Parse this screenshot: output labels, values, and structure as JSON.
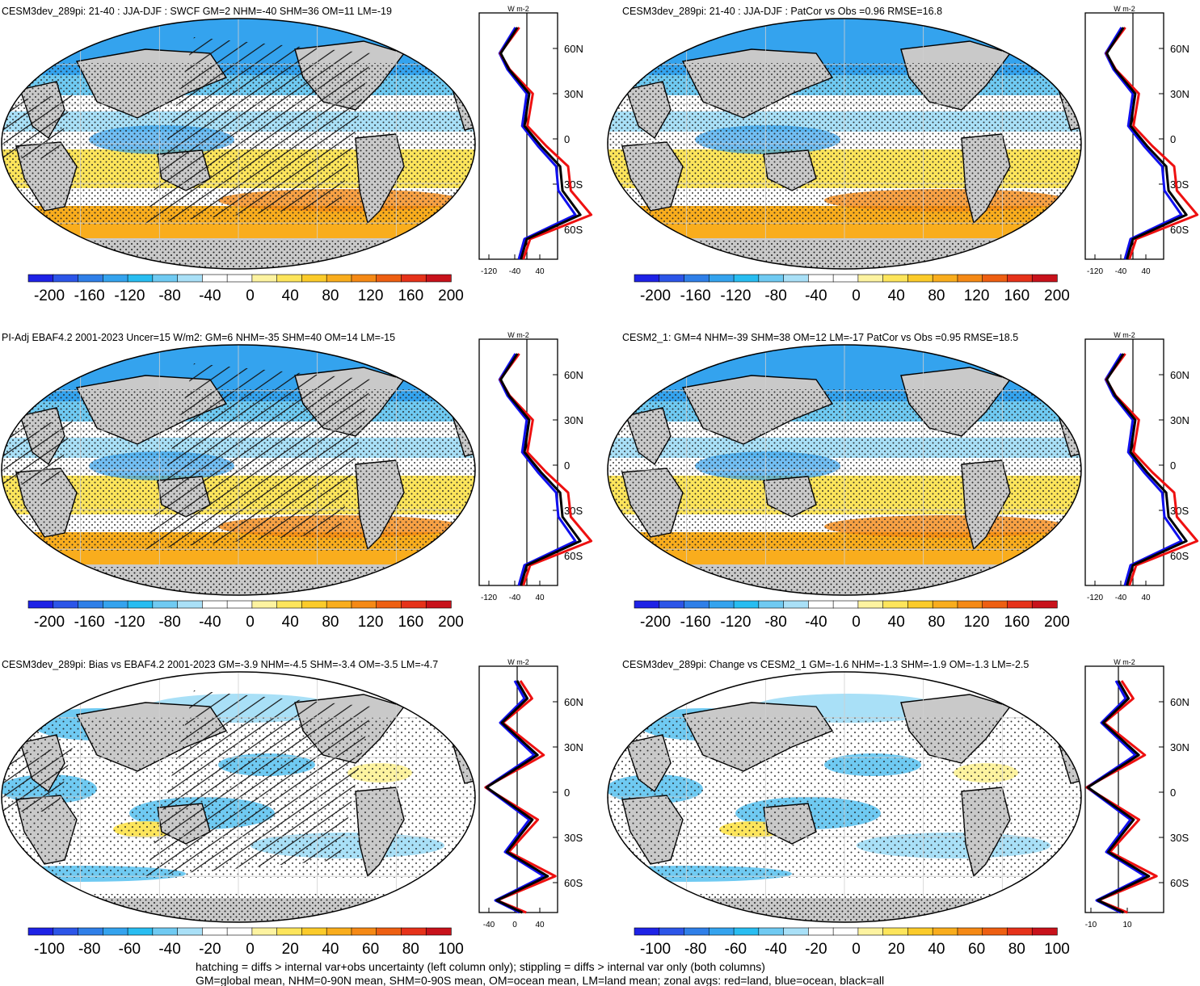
{
  "panels": [
    {
      "title": "CESM3dev_289pi: 21-40 : JJA-DJF : SWCF GM=2 NHM=-40 SHM=36 OM=11 LM=-19",
      "colorbar": {
        "ticks": [
          "-200",
          "-160",
          "-120",
          "-80",
          "-40",
          "0",
          "40",
          "80",
          "120",
          "160",
          "200"
        ]
      },
      "zonal": {
        "unit": "W m-2",
        "xticks": [
          "-120",
          "-40",
          "40"
        ]
      },
      "style": {
        "stipple": "dense",
        "hatch": true,
        "bias": false
      }
    },
    {
      "title": "CESM3dev_289pi: 21-40 : JJA-DJF : PatCor vs Obs =0.96 RMSE=16.8",
      "colorbar": {
        "ticks": [
          "-200",
          "-160",
          "-120",
          "-80",
          "-40",
          "0",
          "40",
          "80",
          "120",
          "160",
          "200"
        ]
      },
      "zonal": {
        "unit": "W m-2",
        "xticks": [
          "-120",
          "-40",
          "40"
        ]
      },
      "style": {
        "stipple": "dense",
        "hatch": false,
        "bias": false
      }
    },
    {
      "title": "PI-Adj EBAF4.2 2001-2023 Uncer=15 W/m2: GM=6 NHM=-35 SHM=40 OM=14 LM=-15",
      "colorbar": {
        "ticks": [
          "-200",
          "-160",
          "-120",
          "-80",
          "-40",
          "0",
          "40",
          "80",
          "120",
          "160",
          "200"
        ]
      },
      "zonal": {
        "unit": "W m-2",
        "xticks": [
          "-120",
          "-40",
          "40"
        ]
      },
      "style": {
        "stipple": "dense",
        "hatch": true,
        "bias": false
      }
    },
    {
      "title": "CESM2_1: GM=4 NHM=-39 SHM=38 OM=12 LM=-17 PatCor vs Obs =0.95 RMSE=18.5",
      "colorbar": {
        "ticks": [
          "-200",
          "-160",
          "-120",
          "-80",
          "-40",
          "0",
          "40",
          "80",
          "120",
          "160",
          "200"
        ]
      },
      "zonal": {
        "unit": "W m-2",
        "xticks": [
          "-120",
          "-40",
          "40"
        ]
      },
      "style": {
        "stipple": "dense",
        "hatch": false,
        "bias": false
      }
    },
    {
      "title": "CESM3dev_289pi: Bias vs EBAF4.2 2001-2023 GM=-3.9 NHM=-4.5 SHM=-3.4 OM=-3.5 LM=-4.7",
      "colorbar": {
        "ticks": [
          "-100",
          "-80",
          "-60",
          "-40",
          "-20",
          "0",
          "20",
          "40",
          "60",
          "80",
          "100"
        ]
      },
      "zonal": {
        "unit": "W m-2",
        "xticks": [
          "-40",
          "0",
          "40"
        ]
      },
      "style": {
        "stipple": "sparse",
        "hatch": true,
        "bias": true
      }
    },
    {
      "title": "CESM3dev_289pi: Change vs CESM2_1 GM=-1.6 NHM=-1.3 SHM=-1.9 OM=-1.3 LM=-2.5",
      "colorbar": {
        "ticks": [
          "-100",
          "-80",
          "-60",
          "-40",
          "-20",
          "0",
          "20",
          "40",
          "60",
          "80",
          "100"
        ]
      },
      "zonal": {
        "unit": "W m-2",
        "xticks": [
          "-10",
          "10"
        ]
      },
      "style": {
        "stipple": "sparse",
        "hatch": false,
        "bias": true
      }
    }
  ],
  "lat_labels": [
    "60N",
    "30N",
    "0",
    "30S",
    "60S"
  ],
  "colorbar_colors": [
    "#1e22e6",
    "#2c55e8",
    "#2f7fe8",
    "#34a3ee",
    "#28bdf1",
    "#6fcaf2",
    "#a9e0f7",
    "#ffffff",
    "#ffffff",
    "#fdf3a0",
    "#fde55b",
    "#fbcb2a",
    "#f9ad1d",
    "#f58915",
    "#ee5f12",
    "#e6321a",
    "#c8121b"
  ],
  "colors": {
    "land": "#c9c9c9",
    "ocean_zonal": "#1010ee",
    "land_zonal": "#ee1010",
    "all_zonal": "#000000"
  },
  "footer": [
    "hatching = diffs > internal var+obs uncertainty (left column only); stippling = diffs > internal var only (both columns)",
    "GM=global mean, NHM=0-90N mean, SHM=0-90S mean, OM=ocean mean, LM=land mean; zonal avgs: red=land, blue=ocean, black=all"
  ]
}
